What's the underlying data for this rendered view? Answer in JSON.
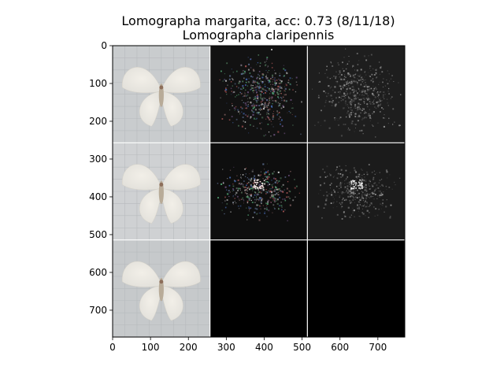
{
  "chart_data": {
    "type": "image-grid",
    "title": "Lomographa margarita, acc: 0.73 (8/11/18)",
    "subtitle": "Lomographa claripennis",
    "xlim": [
      0,
      771
    ],
    "ylim": [
      771,
      0
    ],
    "x_ticks": [
      0,
      100,
      200,
      300,
      400,
      500,
      600,
      700
    ],
    "y_ticks": [
      0,
      100,
      200,
      300,
      400,
      500,
      600,
      700
    ],
    "grid_rows": 3,
    "grid_cols": 3,
    "tile_size": 257,
    "separator_color": "#ffffff",
    "tiles": [
      {
        "row": 0,
        "col": 0,
        "kind": "moth-photo",
        "bg": "#c9ccce"
      },
      {
        "row": 0,
        "col": 1,
        "kind": "saliency-color",
        "bg": "#121212"
      },
      {
        "row": 0,
        "col": 2,
        "kind": "saliency-gray",
        "bg": "#1e1e1e"
      },
      {
        "row": 1,
        "col": 0,
        "kind": "moth-photo",
        "bg": "#cfd1d3"
      },
      {
        "row": 1,
        "col": 1,
        "kind": "saliency-color",
        "bg": "#0e0e0e"
      },
      {
        "row": 1,
        "col": 2,
        "kind": "saliency-gray",
        "bg": "#1b1b1b"
      },
      {
        "row": 2,
        "col": 0,
        "kind": "moth-photo",
        "bg": "#c6c9cb"
      },
      {
        "row": 2,
        "col": 1,
        "kind": "blank",
        "bg": "#000000"
      },
      {
        "row": 2,
        "col": 2,
        "kind": "blank",
        "bg": "#000000"
      }
    ]
  }
}
